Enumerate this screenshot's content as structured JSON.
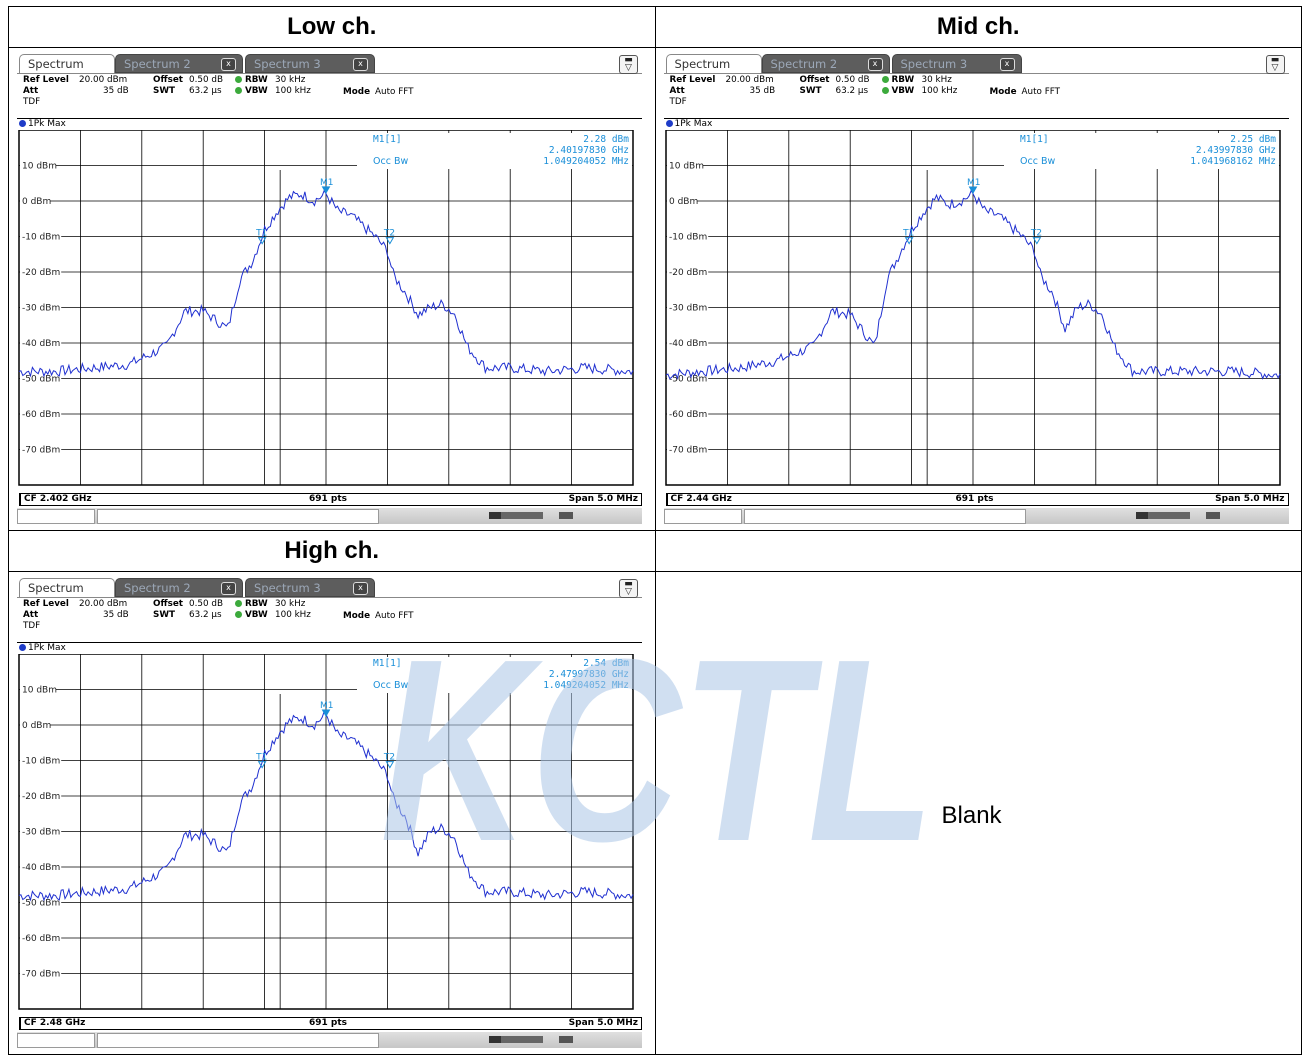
{
  "headers": {
    "low": "Low ch.",
    "mid": "Mid ch.",
    "high": "High ch.",
    "empty": ""
  },
  "blank_text": "Blank",
  "watermark": "KCTL",
  "common": {
    "tabs": [
      "Spectrum",
      "Spectrum 2",
      "Spectrum 3"
    ],
    "tab_close": "x",
    "ref_level_label": "Ref Level",
    "ref_level": "20.00 dBm",
    "offset_label": "Offset",
    "offset": "0.50 dB",
    "rbw_label": "RBW",
    "rbw": "30 kHz",
    "att_label": "Att",
    "att": "35 dB",
    "swt_label": "SWT",
    "swt": "63.2 µs",
    "vbw_label": "VBW",
    "vbw": "100 kHz",
    "mode_label": "Mode",
    "mode": "Auto FFT",
    "tdf": "TDF",
    "trace": "1Pk Max",
    "marker_label": "M1[1]",
    "occ_label": "Occ Bw",
    "m1_tag": "M1",
    "t1_tag": "T1",
    "t2_tag": "T2",
    "pts": "691 pts",
    "span": "Span 5.0 MHz",
    "y_ticks": [
      "10 dBm",
      "0 dBm",
      "-10 dBm",
      "-20 dBm",
      "-30 dBm",
      "-40 dBm",
      "-50 dBm",
      "-60 dBm",
      "-70 dBm"
    ]
  },
  "screens": {
    "low": {
      "cf": "CF 2.402 GHz",
      "m1_level": "2.28 dBm",
      "m1_freq": "2.40197830 GHz",
      "occ_bw": "1.049204052 MHz"
    },
    "mid": {
      "cf": "CF 2.44 GHz",
      "m1_level": "2.25 dBm",
      "m1_freq": "2.43997830 GHz",
      "occ_bw": "1.041968162 MHz"
    },
    "high": {
      "cf": "CF 2.48 GHz",
      "m1_level": "2.54 dBm",
      "m1_freq": "2.47997830 GHz",
      "occ_bw": "1.049204052 MHz"
    }
  },
  "chart_data": [
    {
      "type": "line",
      "name": "low",
      "x_unit": "MHz offset from CF",
      "xlim": [
        -2.5,
        2.5
      ],
      "ylim": [
        -80,
        20
      ],
      "ref_level": 20,
      "x": [
        -2.5,
        -2.2,
        -1.9,
        -1.6,
        -1.3,
        -1.15,
        -1.0,
        -0.8,
        -0.7,
        -0.6,
        -0.5,
        -0.4,
        -0.3,
        -0.2,
        -0.1,
        0.0,
        0.1,
        0.2,
        0.4,
        0.5,
        0.55,
        0.65,
        0.75,
        0.85,
        0.95,
        1.05,
        1.15,
        1.3,
        1.5,
        1.8,
        2.1,
        2.5
      ],
      "y": [
        -48,
        -48,
        -47,
        -46,
        -41,
        -31,
        -31,
        -36,
        -22,
        -17,
        -8,
        -3,
        1,
        2,
        0,
        2,
        -3,
        -4,
        -10,
        -14,
        -21,
        -26,
        -32,
        -30,
        -29,
        -32,
        -41,
        -47,
        -47,
        -48,
        -47,
        -48
      ],
      "markers": [
        {
          "tag": "M1",
          "x": 0.0,
          "y": 2.28
        },
        {
          "tag": "T1",
          "x": -0.52,
          "y": -12
        },
        {
          "tag": "T2",
          "x": 0.52,
          "y": -12
        }
      ]
    },
    {
      "type": "line",
      "name": "mid",
      "x_unit": "MHz offset from CF",
      "xlim": [
        -2.5,
        2.5
      ],
      "ylim": [
        -80,
        20
      ],
      "ref_level": 20,
      "x": [
        -2.5,
        -2.2,
        -1.9,
        -1.6,
        -1.3,
        -1.15,
        -1.0,
        -0.8,
        -0.7,
        -0.6,
        -0.5,
        -0.4,
        -0.3,
        -0.2,
        -0.1,
        0.0,
        0.1,
        0.2,
        0.4,
        0.5,
        0.55,
        0.65,
        0.75,
        0.85,
        0.95,
        1.05,
        1.15,
        1.3,
        1.5,
        1.8,
        2.1,
        2.5
      ],
      "y": [
        -49,
        -48,
        -47,
        -45,
        -41,
        -31,
        -32,
        -41,
        -22,
        -15,
        -8,
        -3,
        1,
        -1,
        0,
        2,
        -3,
        -4,
        -10,
        -14,
        -21,
        -26,
        -36,
        -30,
        -29,
        -32,
        -41,
        -48,
        -48,
        -48,
        -48,
        -49
      ],
      "markers": [
        {
          "tag": "M1",
          "x": 0.0,
          "y": 2.25
        },
        {
          "tag": "T1",
          "x": -0.52,
          "y": -12
        },
        {
          "tag": "T2",
          "x": 0.52,
          "y": -12
        }
      ]
    },
    {
      "type": "line",
      "name": "high",
      "x_unit": "MHz offset from CF",
      "xlim": [
        -2.5,
        2.5
      ],
      "ylim": [
        -80,
        20
      ],
      "ref_level": 20,
      "x": [
        -2.5,
        -2.2,
        -1.9,
        -1.6,
        -1.3,
        -1.15,
        -1.0,
        -0.8,
        -0.7,
        -0.6,
        -0.5,
        -0.4,
        -0.3,
        -0.2,
        -0.1,
        0.0,
        0.1,
        0.2,
        0.4,
        0.5,
        0.55,
        0.65,
        0.75,
        0.85,
        0.95,
        1.05,
        1.15,
        1.3,
        1.5,
        1.8,
        2.1,
        2.5
      ],
      "y": [
        -48,
        -48,
        -47,
        -46,
        -41,
        -31,
        -31,
        -36,
        -22,
        -17,
        -8,
        -3,
        1,
        2,
        0,
        3,
        -3,
        -4,
        -10,
        -14,
        -21,
        -26,
        -36,
        -30,
        -29,
        -32,
        -41,
        -47,
        -47,
        -48,
        -47,
        -48
      ],
      "markers": [
        {
          "tag": "M1",
          "x": 0.0,
          "y": 2.54
        },
        {
          "tag": "T1",
          "x": -0.52,
          "y": -12
        },
        {
          "tag": "T2",
          "x": 0.52,
          "y": -12
        }
      ]
    }
  ]
}
